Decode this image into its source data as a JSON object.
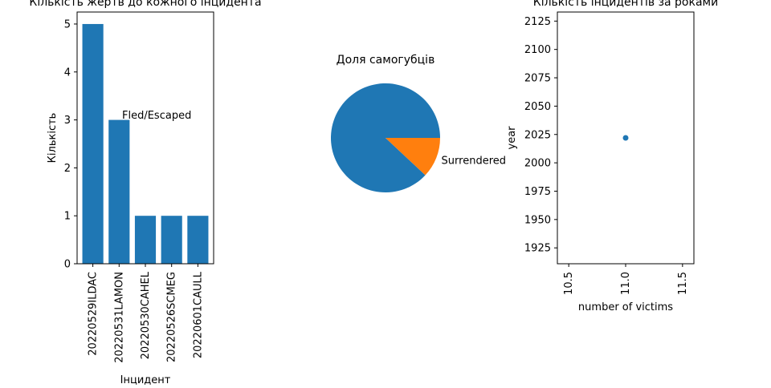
{
  "colors": {
    "blue": "#1f77b4",
    "orange": "#ff7f0e"
  },
  "chart_data": [
    {
      "type": "bar",
      "title": "Кількість жертв до кожного інцидента",
      "xlabel": "Інцидент",
      "ylabel": "Кількість",
      "categories": [
        "20220529ILDAC",
        "20220531LAMON",
        "20220530CAHEL",
        "20220526SCMEG",
        "20220601CAULL"
      ],
      "values": [
        5,
        3,
        1,
        1,
        1
      ],
      "ylim": [
        0,
        5.25
      ],
      "yticks": [
        "0",
        "1",
        "2",
        "3",
        "4",
        "5"
      ],
      "annotation": "Fled/Escaped",
      "grid": false
    },
    {
      "type": "pie",
      "title": "Доля самогубців",
      "slices": [
        {
          "label": "",
          "value": 88
        },
        {
          "label": "Surrendered",
          "value": 12
        }
      ]
    },
    {
      "type": "scatter",
      "title": "Кількість інцидентів за роками",
      "xlabel": "number of victims",
      "ylabel": "year",
      "points": [
        {
          "x": 11,
          "y": 2022
        }
      ],
      "xlim": [
        10.4,
        11.6
      ],
      "ylim": [
        1911,
        2133
      ],
      "xticks": [
        "10.5",
        "11.0",
        "11.5"
      ],
      "yticks": [
        "1925",
        "1950",
        "1975",
        "2000",
        "2025",
        "2050",
        "2075",
        "2100",
        "2125"
      ],
      "grid": false
    }
  ]
}
